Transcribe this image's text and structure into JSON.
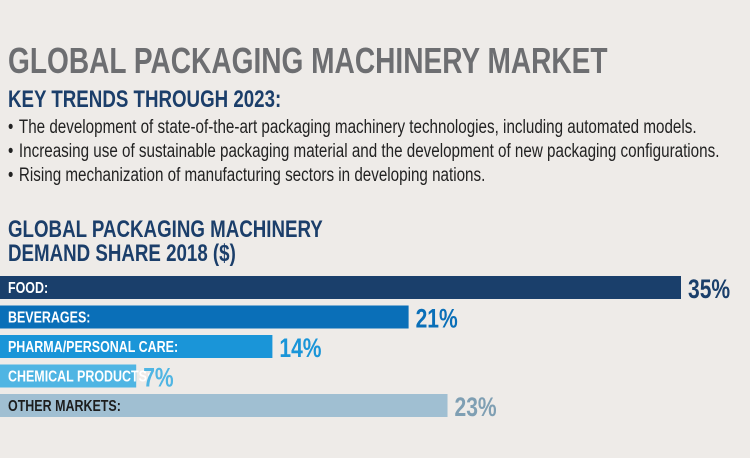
{
  "header": {
    "title": "GLOBAL PACKAGING MACHINERY MARKET",
    "subtitle": "KEY TRENDS THROUGH 2023:",
    "bullets": [
      "The development of state-of-the-art packaging machinery technologies, including automated models.",
      "Increasing use of sustainable packaging material and the development of new packaging configurations.",
      "Rising mechanization of manufacturing sectors in developing nations."
    ]
  },
  "chart_data": {
    "type": "bar",
    "orientation": "horizontal",
    "title_lines": [
      "GLOBAL PACKAGING MACHINERY",
      "DEMAND SHARE 2018 ($)"
    ],
    "categories": [
      "FOOD:",
      "BEVERAGES:",
      "PHARMA/PERSONAL CARE:",
      "CHEMICAL PRODUCTS:",
      "OTHER MARKETS:"
    ],
    "values": [
      35,
      21,
      14,
      7,
      23
    ],
    "value_labels": [
      "35%",
      "21%",
      "14%",
      "7%",
      "23%"
    ],
    "unit": "%",
    "colors": [
      "#1a3f6b",
      "#0a6fb8",
      "#1a95d8",
      "#4fb5e3",
      "#a0bfd2"
    ],
    "label_colors": [
      "#1a3f6b",
      "#0a6fb8",
      "#1a95d8",
      "#4fb5e3",
      "#7f9fb3"
    ],
    "category_text_colors": [
      "#ffffff",
      "#ffffff",
      "#ffffff",
      "#ffffff",
      "#1d1d1d"
    ],
    "grid": false
  }
}
